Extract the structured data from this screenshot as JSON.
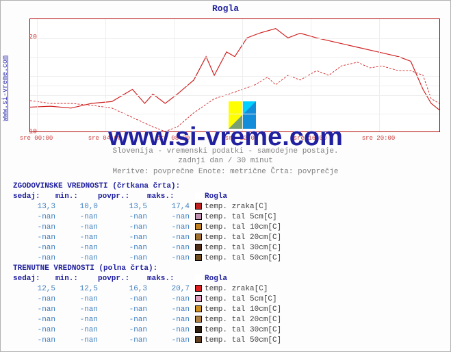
{
  "title": "Rogla",
  "site_link": "www.si-vreme.com",
  "watermark": "www.si-vreme.com",
  "sub1": "Slovenija - vremenski podatki - samodejne postaje.",
  "sub2": "zadnji dan / 30 minut",
  "sub3": "Meritve: povprečne  Enote: metrične  Črta: povprečje",
  "chart": {
    "type": "line",
    "ylim": [
      10,
      22
    ],
    "yticks": [
      {
        "v": 10,
        "label": "10"
      },
      {
        "v": 15,
        "label": ""
      },
      {
        "v": 20,
        "label": "20"
      }
    ],
    "xticks": [
      "sre 00:00",
      "sre 04:00",
      "sre 08:00",
      "sre 12:00",
      "sre 16:00",
      "sre 20:00"
    ],
    "grid_color": "#eeeeee",
    "axis_color": "#b00000",
    "series": [
      {
        "name": "current",
        "color": "#d02020",
        "stroke": 1.2,
        "dash": "none",
        "points": [
          [
            0,
            12.6
          ],
          [
            5,
            12.7
          ],
          [
            10,
            12.5
          ],
          [
            15,
            13.0
          ],
          [
            20,
            13.2
          ],
          [
            25,
            14.5
          ],
          [
            28,
            13.0
          ],
          [
            30,
            14.0
          ],
          [
            33,
            13.0
          ],
          [
            36,
            14.0
          ],
          [
            40,
            15.5
          ],
          [
            43,
            18.0
          ],
          [
            45,
            16.0
          ],
          [
            48,
            18.5
          ],
          [
            50,
            18.0
          ],
          [
            53,
            20.0
          ],
          [
            56,
            20.5
          ],
          [
            60,
            21.0
          ],
          [
            63,
            20.0
          ],
          [
            66,
            20.5
          ],
          [
            70,
            20.0
          ],
          [
            75,
            19.5
          ],
          [
            80,
            19.0
          ],
          [
            85,
            18.5
          ],
          [
            90,
            18.0
          ],
          [
            93,
            17.5
          ],
          [
            96,
            14.5
          ],
          [
            98,
            13.0
          ],
          [
            100,
            12.3
          ]
        ]
      },
      {
        "name": "history",
        "color": "#d02020",
        "stroke": 0.9,
        "dash": "3,2",
        "points": [
          [
            0,
            13.3
          ],
          [
            5,
            13.0
          ],
          [
            10,
            13.0
          ],
          [
            15,
            12.8
          ],
          [
            20,
            12.5
          ],
          [
            25,
            11.5
          ],
          [
            30,
            10.5
          ],
          [
            33,
            10.0
          ],
          [
            36,
            10.5
          ],
          [
            40,
            12.0
          ],
          [
            45,
            13.5
          ],
          [
            50,
            14.2
          ],
          [
            55,
            15.0
          ],
          [
            58,
            15.8
          ],
          [
            60,
            15.0
          ],
          [
            63,
            16.0
          ],
          [
            66,
            15.5
          ],
          [
            70,
            16.5
          ],
          [
            73,
            16.0
          ],
          [
            76,
            17.0
          ],
          [
            80,
            17.4
          ],
          [
            83,
            16.8
          ],
          [
            86,
            17.0
          ],
          [
            90,
            16.5
          ],
          [
            93,
            16.5
          ],
          [
            96,
            16.0
          ],
          [
            98,
            13.5
          ],
          [
            100,
            13.0
          ]
        ]
      }
    ]
  },
  "table_hist": {
    "head": "ZGODOVINSKE VREDNOSTI (črtkana črta):",
    "cols": [
      "sedaj:",
      "min.:",
      "povpr.:",
      "maks.:"
    ],
    "legend_head": "Rogla",
    "rows": [
      {
        "v": [
          "13,3",
          "10,0",
          "13,5",
          "17,4"
        ],
        "swatch": "#c02020",
        "label": "temp. zraka[C]"
      },
      {
        "v": [
          "-nan",
          "-nan",
          "-nan",
          "-nan"
        ],
        "swatch": "#c090b0",
        "label": "temp. tal  5cm[C]"
      },
      {
        "v": [
          "-nan",
          "-nan",
          "-nan",
          "-nan"
        ],
        "swatch": "#c08020",
        "label": "temp. tal 10cm[C]"
      },
      {
        "v": [
          "-nan",
          "-nan",
          "-nan",
          "-nan"
        ],
        "swatch": "#a07030",
        "label": "temp. tal 20cm[C]"
      },
      {
        "v": [
          "-nan",
          "-nan",
          "-nan",
          "-nan"
        ],
        "swatch": "#503018",
        "label": "temp. tal 30cm[C]"
      },
      {
        "v": [
          "-nan",
          "-nan",
          "-nan",
          "-nan"
        ],
        "swatch": "#705020",
        "label": "temp. tal 50cm[C]"
      }
    ]
  },
  "table_curr": {
    "head": "TRENUTNE VREDNOSTI (polna črta):",
    "cols": [
      "sedaj:",
      "min.:",
      "povpr.:",
      "maks.:"
    ],
    "legend_head": "Rogla",
    "rows": [
      {
        "v": [
          "12,5",
          "12,5",
          "16,3",
          "20,7"
        ],
        "swatch": "#e02020",
        "label": "temp. zraka[C]"
      },
      {
        "v": [
          "-nan",
          "-nan",
          "-nan",
          "-nan"
        ],
        "swatch": "#e0a0c0",
        "label": "temp. tal  5cm[C]"
      },
      {
        "v": [
          "-nan",
          "-nan",
          "-nan",
          "-nan"
        ],
        "swatch": "#d09020",
        "label": "temp. tal 10cm[C]"
      },
      {
        "v": [
          "-nan",
          "-nan",
          "-nan",
          "-nan"
        ],
        "swatch": "#b08040",
        "label": "temp. tal 20cm[C]"
      },
      {
        "v": [
          "-nan",
          "-nan",
          "-nan",
          "-nan"
        ],
        "swatch": "#302010",
        "label": "temp. tal 30cm[C]"
      },
      {
        "v": [
          "-nan",
          "-nan",
          "-nan",
          "-nan"
        ],
        "swatch": "#604020",
        "label": "temp. tal 50cm[C]"
      }
    ]
  }
}
